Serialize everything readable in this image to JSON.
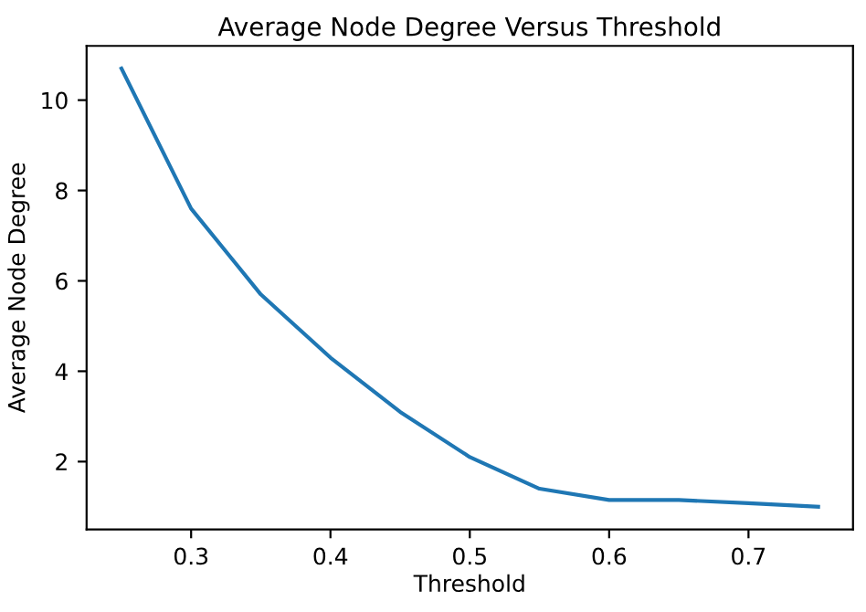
{
  "chart_data": {
    "type": "line",
    "title": "Average Node Degree Versus Threshold",
    "xlabel": "Threshold",
    "ylabel": "Average Node Degree",
    "x": [
      0.25,
      0.3,
      0.35,
      0.4,
      0.45,
      0.5,
      0.55,
      0.6,
      0.65,
      0.7,
      0.75
    ],
    "series": [
      {
        "color": "#1f77b4",
        "values": [
          10.7,
          7.6,
          5.7,
          4.3,
          3.1,
          2.1,
          1.4,
          1.15,
          1.15,
          1.08,
          1.0
        ]
      }
    ],
    "xlim": [
      0.225,
      0.775
    ],
    "ylim": [
      0.5,
      11.2
    ],
    "xticks": [
      0.3,
      0.4,
      0.5,
      0.6,
      0.7
    ],
    "yticks": [
      2,
      4,
      6,
      8,
      10
    ],
    "grid": false,
    "legend": false
  }
}
